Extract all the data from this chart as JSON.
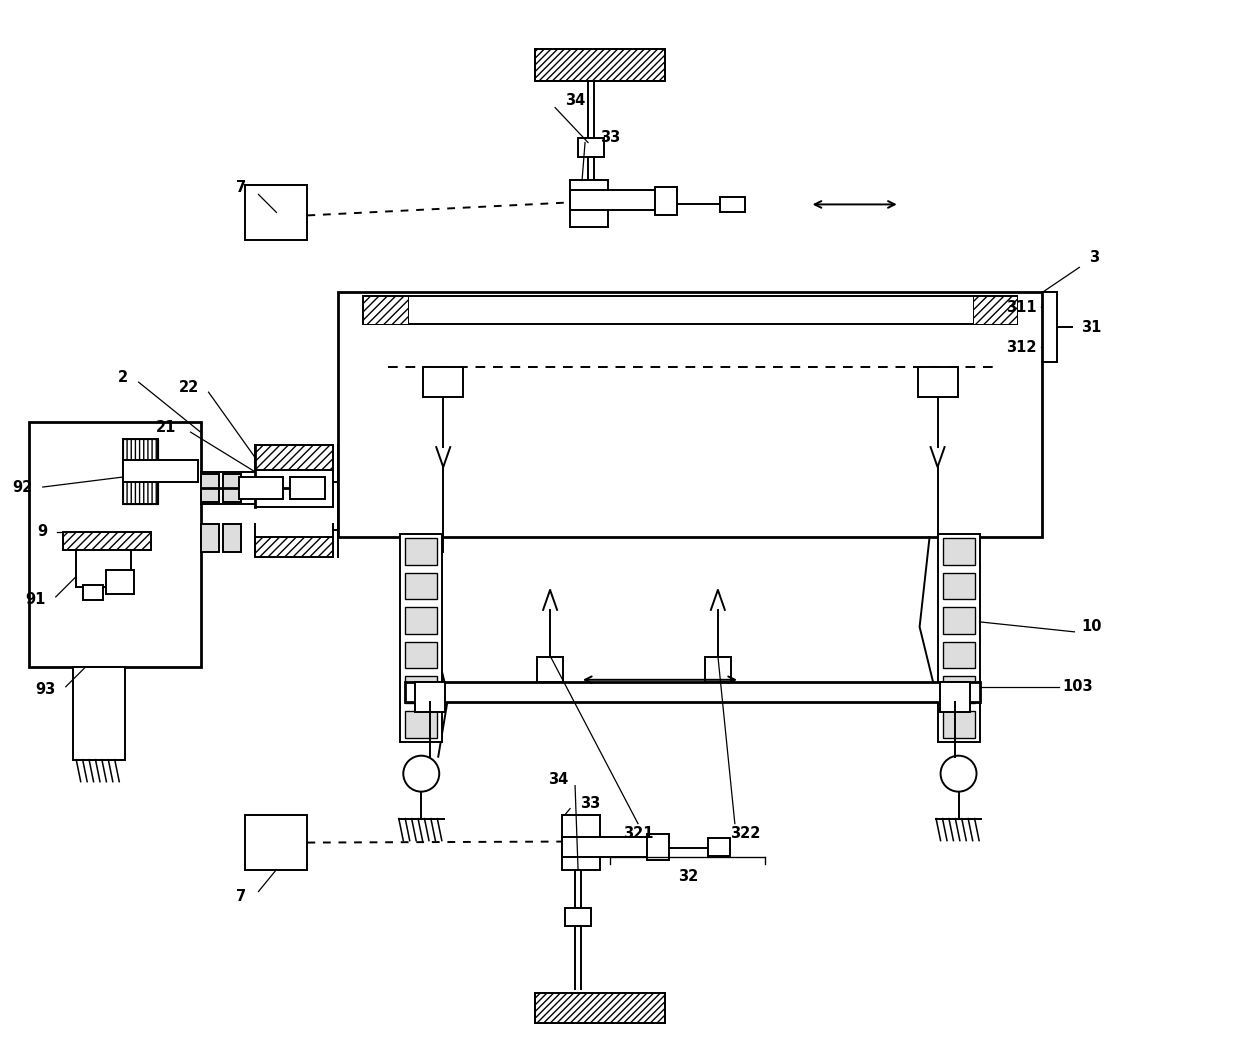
{
  "bg_color": "#ffffff",
  "lw": 1.4,
  "hlw": 2.0,
  "fig_w": 12.4,
  "fig_h": 10.42,
  "dpi": 100,
  "xlim": [
    0,
    12.4
  ],
  "ylim": [
    0,
    10.42
  ]
}
